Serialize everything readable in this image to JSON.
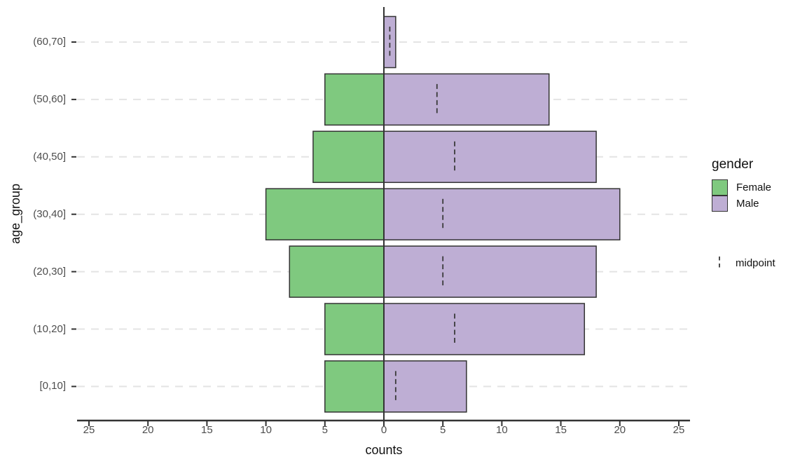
{
  "chart_data": {
    "type": "bar",
    "subtype": "population_pyramid",
    "orientation": "horizontal",
    "title": "",
    "xlabel": "counts",
    "ylabel": "age_group",
    "categories": [
      "(60,70]",
      "(50,60]",
      "(40,50]",
      "(30,40]",
      "(20,30]",
      "(10,20]",
      "[0,10]"
    ],
    "categories_order": "top_to_bottom",
    "series": [
      {
        "name": "Female",
        "side": "left",
        "color": "#7FC97F",
        "values": [
          0,
          5,
          6,
          10,
          8,
          5,
          5
        ]
      },
      {
        "name": "Male",
        "side": "right",
        "color": "#BEAED4",
        "values": [
          1,
          14,
          18,
          20,
          18,
          17,
          7
        ]
      }
    ],
    "midpoint_markers": {
      "label": "midpoint",
      "style": "dashed_vertical_line",
      "values": [
        0.5,
        4.5,
        6,
        5,
        5,
        6,
        1
      ]
    },
    "x_tick_values": [
      -25,
      -20,
      -15,
      -10,
      -5,
      0,
      5,
      10,
      15,
      20,
      25
    ],
    "x_tick_labels": [
      "25",
      "20",
      "15",
      "10",
      "5",
      "0",
      "5",
      "10",
      "15",
      "20",
      "25"
    ],
    "xlim": [
      -26,
      26
    ],
    "grid": "horizontal_dashed",
    "legend": {
      "position": "right",
      "title": "gender",
      "entries": [
        {
          "label": "Female",
          "color": "#7FC97F"
        },
        {
          "label": "Male",
          "color": "#BEAED4"
        }
      ],
      "line_entry": {
        "label": "midpoint",
        "style": "dashed"
      }
    },
    "colors": {
      "female_fill": "#7FC97F",
      "male_fill": "#BEAED4",
      "bar_stroke": "#333333",
      "midpoint_stroke": "#3a3a3a",
      "axis_line": "#333333",
      "grid_line": "#E4E4E4",
      "tick_label": "#4D4D4D",
      "axis_title": "#111111",
      "background": "#FFFFFF"
    }
  }
}
